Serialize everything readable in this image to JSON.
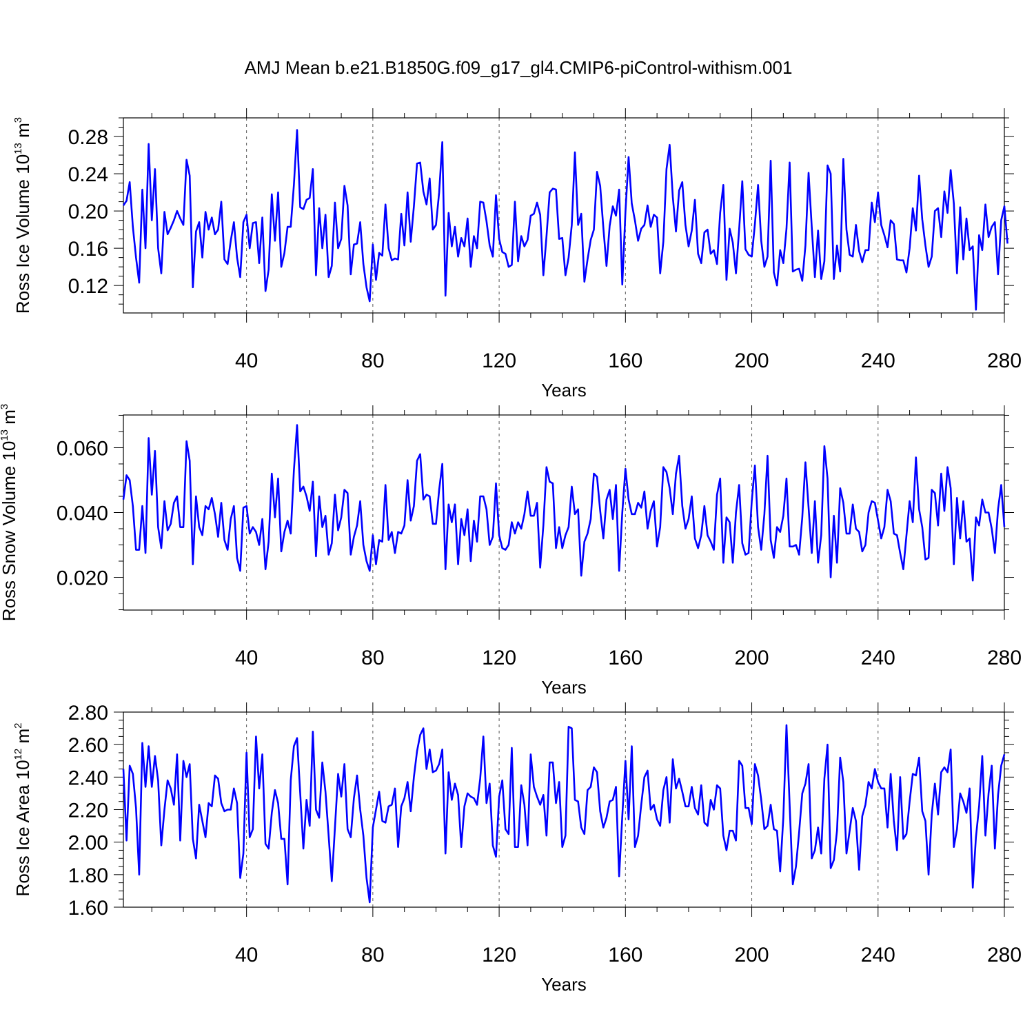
{
  "title": "AMJ Mean b.e21.B1850G.f09_g17_gl4.CMIP6-piControl-withism.001",
  "line_color": "#0000ff",
  "chart_data": [
    {
      "type": "line",
      "ylabel_main": "Ross Ice Volume 10",
      "ylabel_exp": "13",
      "ylabel_unit": " m",
      "ylabel_unit_exp": "3",
      "xlabel": "Years",
      "xlim": [
        1,
        280
      ],
      "ylim": [
        0.0905,
        0.3
      ],
      "xticks": [
        40,
        80,
        120,
        160,
        200,
        240,
        280
      ],
      "xtick_labels": [
        "40",
        "80",
        "120",
        "160",
        "200",
        "240",
        "280"
      ],
      "yticks": [
        0.12,
        0.16,
        0.2,
        0.24,
        0.28
      ],
      "ytick_labels": [
        "0.12",
        "0.16",
        "0.20",
        "0.24",
        "0.28"
      ],
      "grid": "vertical dashed at major x ticks",
      "series": [
        {
          "values": [
            0.206,
            0.211,
            0.231,
            0.183,
            0.15,
            0.123,
            0.223,
            0.16,
            0.272,
            0.19,
            0.245,
            0.16,
            0.133,
            0.199,
            0.175,
            0.182,
            0.19,
            0.2,
            0.192,
            0.185,
            0.255,
            0.238,
            0.118,
            0.178,
            0.188,
            0.15,
            0.199,
            0.18,
            0.193,
            0.175,
            0.18,
            0.21,
            0.148,
            0.143,
            0.168,
            0.188,
            0.15,
            0.129,
            0.188,
            0.196,
            0.16,
            0.187,
            0.188,
            0.144,
            0.193,
            0.114,
            0.137,
            0.218,
            0.168,
            0.22,
            0.14,
            0.155,
            0.183,
            0.183,
            0.228,
            0.287,
            0.204,
            0.202,
            0.212,
            0.214,
            0.245,
            0.131,
            0.203,
            0.16,
            0.196,
            0.129,
            0.141,
            0.209,
            0.16,
            0.17,
            0.227,
            0.206,
            0.132,
            0.164,
            0.165,
            0.188,
            0.143,
            0.118,
            0.103,
            0.164,
            0.126,
            0.155,
            0.152,
            0.207,
            0.16,
            0.147,
            0.149,
            0.148,
            0.197,
            0.163,
            0.22,
            0.167,
            0.205,
            0.251,
            0.252,
            0.221,
            0.207,
            0.235,
            0.18,
            0.185,
            0.22,
            0.274,
            0.109,
            0.198,
            0.162,
            0.183,
            0.151,
            0.171,
            0.162,
            0.192,
            0.14,
            0.173,
            0.16,
            0.21,
            0.209,
            0.189,
            0.163,
            0.151,
            0.217,
            0.17,
            0.156,
            0.154,
            0.14,
            0.142,
            0.21,
            0.146,
            0.173,
            0.162,
            0.169,
            0.195,
            0.197,
            0.209,
            0.196,
            0.131,
            0.173,
            0.22,
            0.224,
            0.223,
            0.17,
            0.171,
            0.131,
            0.15,
            0.185,
            0.263,
            0.185,
            0.197,
            0.124,
            0.148,
            0.169,
            0.18,
            0.242,
            0.227,
            0.182,
            0.141,
            0.184,
            0.205,
            0.195,
            0.223,
            0.121,
            0.199,
            0.258,
            0.208,
            0.19,
            0.168,
            0.181,
            0.185,
            0.206,
            0.183,
            0.196,
            0.193,
            0.133,
            0.167,
            0.245,
            0.271,
            0.215,
            0.178,
            0.222,
            0.231,
            0.185,
            0.162,
            0.179,
            0.212,
            0.154,
            0.144,
            0.177,
            0.18,
            0.154,
            0.158,
            0.143,
            0.198,
            0.228,
            0.126,
            0.181,
            0.166,
            0.133,
            0.18,
            0.232,
            0.159,
            0.153,
            0.151,
            0.186,
            0.228,
            0.168,
            0.14,
            0.151,
            0.254,
            0.134,
            0.12,
            0.158,
            0.144,
            0.181,
            0.252,
            0.135,
            0.137,
            0.138,
            0.125,
            0.163,
            0.241,
            0.183,
            0.129,
            0.179,
            0.127,
            0.146,
            0.249,
            0.24,
            0.127,
            0.163,
            0.135,
            0.256,
            0.18,
            0.153,
            0.151,
            0.185,
            0.157,
            0.145,
            0.158,
            0.158,
            0.209,
            0.188,
            0.22,
            0.185,
            0.174,
            0.161,
            0.19,
            0.186,
            0.148,
            0.147,
            0.147,
            0.134,
            0.16,
            0.203,
            0.179,
            0.238,
            0.191,
            0.163,
            0.14,
            0.151,
            0.2,
            0.203,
            0.172,
            0.221,
            0.198,
            0.244,
            0.208,
            0.133,
            0.204,
            0.148,
            0.192,
            0.158,
            0.162,
            0.094,
            0.174,
            0.158,
            0.207,
            0.172,
            0.183,
            0.188,
            0.132,
            0.19,
            0.205,
            0.165
          ]
        }
      ]
    },
    {
      "type": "line",
      "ylabel_main": "Ross Snow Volume 10",
      "ylabel_exp": "13",
      "ylabel_unit": " m",
      "ylabel_unit_exp": "3",
      "xlabel": "Years",
      "xlim": [
        1,
        280
      ],
      "ylim": [
        0.0099,
        0.0701
      ],
      "xticks": [
        40,
        80,
        120,
        160,
        200,
        240,
        280
      ],
      "xtick_labels": [
        "40",
        "80",
        "120",
        "160",
        "200",
        "240",
        "280"
      ],
      "yticks": [
        0.02,
        0.04,
        0.06
      ],
      "ytick_labels": [
        "0.020",
        "0.040",
        "0.060"
      ],
      "grid": "vertical dashed at major x ticks",
      "series": [
        {
          "values": [
            0.044,
            0.0515,
            0.05,
            0.042,
            0.0285,
            0.0285,
            0.042,
            0.0275,
            0.063,
            0.0455,
            0.059,
            0.0355,
            0.029,
            0.0435,
            0.0345,
            0.0365,
            0.043,
            0.045,
            0.0355,
            0.0355,
            0.062,
            0.056,
            0.024,
            0.045,
            0.0355,
            0.033,
            0.042,
            0.041,
            0.0445,
            0.0395,
            0.0325,
            0.043,
            0.0315,
            0.0285,
            0.038,
            0.042,
            0.026,
            0.022,
            0.0415,
            0.042,
            0.0335,
            0.0355,
            0.034,
            0.03,
            0.038,
            0.0225,
            0.031,
            0.052,
            0.0385,
            0.0505,
            0.028,
            0.034,
            0.0375,
            0.0335,
            0.053,
            0.067,
            0.0465,
            0.048,
            0.045,
            0.0405,
            0.0495,
            0.0265,
            0.045,
            0.0355,
            0.039,
            0.027,
            0.0305,
            0.0455,
            0.0345,
            0.0385,
            0.047,
            0.046,
            0.027,
            0.0325,
            0.036,
            0.0435,
            0.03,
            0.025,
            0.022,
            0.033,
            0.024,
            0.0315,
            0.031,
            0.0485,
            0.0315,
            0.034,
            0.0275,
            0.034,
            0.0335,
            0.036,
            0.05,
            0.0375,
            0.042,
            0.056,
            0.058,
            0.044,
            0.0455,
            0.045,
            0.0365,
            0.0365,
            0.047,
            0.055,
            0.0225,
            0.0425,
            0.037,
            0.0425,
            0.024,
            0.038,
            0.033,
            0.041,
            0.025,
            0.0375,
            0.031,
            0.045,
            0.045,
            0.041,
            0.03,
            0.0325,
            0.049,
            0.033,
            0.029,
            0.0285,
            0.03,
            0.037,
            0.0335,
            0.037,
            0.035,
            0.0395,
            0.0465,
            0.039,
            0.039,
            0.043,
            0.023,
            0.036,
            0.054,
            0.0495,
            0.049,
            0.029,
            0.0355,
            0.029,
            0.033,
            0.0355,
            0.048,
            0.0395,
            0.041,
            0.0205,
            0.031,
            0.0335,
            0.038,
            0.052,
            0.051,
            0.0405,
            0.032,
            0.044,
            0.047,
            0.038,
            0.0485,
            0.022,
            0.04,
            0.0535,
            0.044,
            0.0395,
            0.0395,
            0.043,
            0.0415,
            0.0465,
            0.035,
            0.0405,
            0.0435,
            0.0295,
            0.0355,
            0.054,
            0.0525,
            0.0475,
            0.0395,
            0.052,
            0.0575,
            0.042,
            0.035,
            0.038,
            0.045,
            0.032,
            0.029,
            0.033,
            0.042,
            0.033,
            0.031,
            0.0285,
            0.0455,
            0.0505,
            0.0245,
            0.0385,
            0.037,
            0.0245,
            0.04,
            0.0485,
            0.0305,
            0.027,
            0.0275,
            0.0435,
            0.0545,
            0.0355,
            0.0285,
            0.0395,
            0.0575,
            0.0315,
            0.026,
            0.0355,
            0.034,
            0.039,
            0.0505,
            0.0295,
            0.0295,
            0.03,
            0.027,
            0.0385,
            0.0555,
            0.0415,
            0.0275,
            0.0435,
            0.0245,
            0.033,
            0.0605,
            0.0505,
            0.02,
            0.039,
            0.0245,
            0.0475,
            0.043,
            0.0335,
            0.0335,
            0.0425,
            0.035,
            0.034,
            0.028,
            0.03,
            0.04,
            0.0435,
            0.043,
            0.0375,
            0.032,
            0.0355,
            0.047,
            0.0435,
            0.0335,
            0.033,
            0.0275,
            0.0225,
            0.033,
            0.0435,
            0.037,
            0.057,
            0.041,
            0.0355,
            0.0255,
            0.026,
            0.047,
            0.046,
            0.036,
            0.052,
            0.0405,
            0.054,
            0.0475,
            0.024,
            0.0445,
            0.032,
            0.0435,
            0.031,
            0.032,
            0.019,
            0.0385,
            0.036,
            0.044,
            0.04,
            0.04,
            0.035,
            0.0275,
            0.041,
            0.0485,
            0.0355
          ]
        }
      ]
    },
    {
      "type": "line",
      "ylabel_main": "Ross Ice Area 10",
      "ylabel_exp": "12",
      "ylabel_unit": " m",
      "ylabel_unit_exp": "2",
      "xlabel": "Years",
      "xlim": [
        1,
        280
      ],
      "ylim": [
        1.6,
        2.8
      ],
      "xticks": [
        40,
        80,
        120,
        160,
        200,
        240,
        280
      ],
      "xtick_labels": [
        "40",
        "80",
        "120",
        "160",
        "200",
        "240",
        "280"
      ],
      "yticks": [
        1.6,
        1.8,
        2.0,
        2.2,
        2.4,
        2.6,
        2.8
      ],
      "ytick_labels": [
        "1.60",
        "1.80",
        "2.00",
        "2.20",
        "2.40",
        "2.60",
        "2.80"
      ],
      "grid": "vertical dashed at major x ticks",
      "series": [
        {
          "values": [
            2.45,
            2.01,
            2.47,
            2.42,
            2.21,
            1.8,
            2.61,
            2.34,
            2.59,
            2.34,
            2.53,
            2.38,
            1.98,
            2.2,
            2.38,
            2.33,
            2.23,
            2.54,
            2.01,
            2.5,
            2.4,
            2.48,
            2.02,
            1.9,
            2.23,
            2.13,
            2.03,
            2.24,
            2.22,
            2.41,
            2.39,
            2.24,
            2.19,
            2.2,
            2.2,
            2.33,
            2.24,
            1.78,
            1.93,
            2.55,
            2.03,
            2.08,
            2.65,
            2.33,
            2.54,
            1.99,
            1.96,
            2.18,
            2.32,
            2.24,
            2.02,
            2.02,
            1.74,
            2.38,
            2.59,
            2.64,
            2.3,
            1.96,
            2.26,
            2.1,
            2.68,
            2.2,
            2.15,
            2.49,
            2.31,
            2.04,
            1.76,
            2.09,
            2.42,
            2.28,
            2.48,
            2.08,
            2.03,
            2.27,
            2.41,
            2.2,
            2.04,
            1.78,
            1.63,
            2.09,
            2.2,
            2.31,
            2.13,
            2.12,
            2.22,
            2.23,
            2.33,
            1.97,
            2.22,
            2.27,
            2.37,
            2.19,
            2.4,
            2.56,
            2.66,
            2.7,
            2.45,
            2.57,
            2.43,
            2.44,
            2.48,
            2.57,
            1.93,
            2.43,
            2.26,
            2.36,
            2.29,
            1.97,
            2.22,
            2.3,
            2.28,
            2.27,
            2.23,
            2.39,
            2.65,
            2.24,
            2.36,
            1.98,
            1.91,
            2.28,
            2.38,
            2.08,
            2.05,
            2.58,
            1.97,
            1.97,
            2.35,
            2.23,
            1.98,
            2.54,
            2.34,
            2.28,
            2.23,
            2.29,
            2.04,
            2.49,
            2.49,
            2.24,
            2.37,
            1.97,
            2.04,
            2.71,
            2.7,
            2.26,
            2.25,
            2.09,
            2.05,
            2.32,
            2.34,
            2.46,
            2.43,
            2.19,
            2.09,
            2.15,
            2.25,
            2.26,
            2.34,
            1.79,
            2.16,
            2.5,
            2.14,
            2.59,
            1.97,
            2.04,
            2.23,
            2.4,
            2.44,
            2.2,
            2.23,
            2.14,
            2.1,
            2.32,
            2.4,
            2.12,
            2.51,
            2.33,
            2.39,
            2.31,
            2.22,
            2.22,
            2.34,
            2.21,
            2.17,
            2.35,
            2.12,
            2.1,
            2.26,
            2.2,
            2.35,
            2.33,
            2.04,
            1.95,
            2.07,
            2.07,
            2.01,
            2.5,
            2.47,
            2.21,
            2.21,
            2.11,
            2.48,
            2.41,
            2.26,
            2.08,
            2.1,
            2.23,
            2.08,
            2.07,
            1.82,
            2.15,
            2.72,
            2.23,
            1.74,
            1.85,
            2.06,
            2.3,
            2.36,
            2.48,
            1.9,
            1.95,
            2.09,
            1.93,
            2.39,
            2.6,
            1.84,
            1.89,
            2.07,
            2.52,
            2.37,
            1.93,
            2.07,
            2.21,
            2.13,
            1.83,
            2.16,
            2.23,
            2.37,
            2.33,
            2.45,
            2.37,
            2.33,
            2.33,
            2.09,
            2.42,
            2.13,
            1.95,
            2.4,
            2.02,
            2.05,
            2.25,
            2.42,
            2.41,
            2.52,
            2.19,
            2.13,
            1.8,
            2.17,
            2.36,
            2.17,
            2.43,
            2.46,
            2.43,
            2.57,
            1.97,
            2.08,
            2.3,
            2.25,
            2.18,
            2.33,
            1.72,
            2.03,
            2.22,
            2.53,
            2.04,
            2.3,
            2.47,
            1.96,
            2.29,
            2.47,
            2.54
          ]
        }
      ]
    }
  ]
}
